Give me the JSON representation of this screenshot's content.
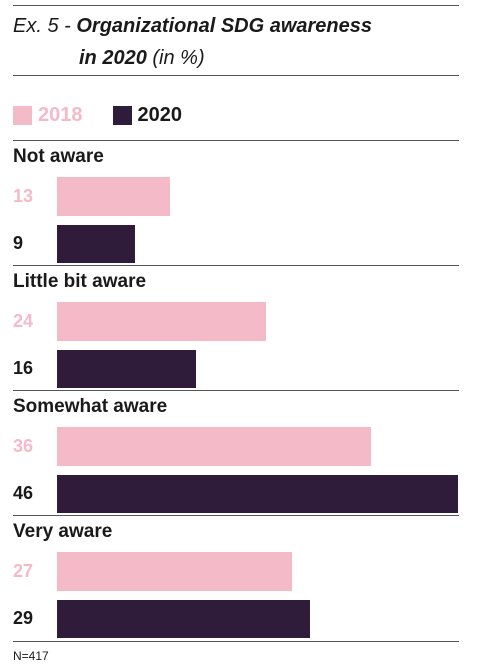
{
  "header": {
    "prefix": "Ex. 5 -",
    "title_line1": "Organizational SDG awareness",
    "title_line2": "in 2020",
    "unit": "(in %)"
  },
  "colors": {
    "y2018": "#f4bac8",
    "y2020": "#2f1c3b"
  },
  "chart_data": {
    "type": "bar",
    "orientation": "horizontal",
    "categories": [
      "Not aware",
      "Little bit aware",
      "Somewhat aware",
      "Very aware"
    ],
    "series": [
      {
        "name": "2018",
        "values": [
          13,
          24,
          36,
          27
        ]
      },
      {
        "name": "2020",
        "values": [
          9,
          16,
          46,
          29
        ]
      }
    ],
    "xlim": [
      0,
      46
    ],
    "legend_position": "top-left",
    "grid": false
  },
  "footer": {
    "note": "N=417"
  }
}
